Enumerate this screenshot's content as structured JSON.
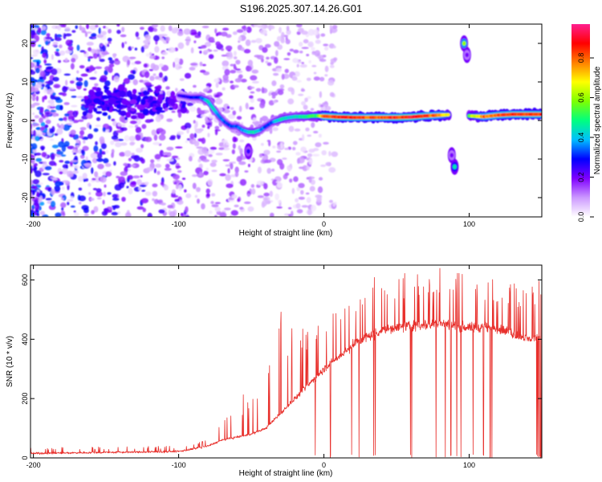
{
  "title": "S196.2025.307.14.26.G01",
  "chart_data": [
    {
      "type": "heatmap",
      "title": "S196.2025.307.14.26.G01",
      "xlabel": "Height of straight line (km)",
      "ylabel": "Frequency (Hz)",
      "xlim": [
        -202,
        150
      ],
      "ylim": [
        -25,
        25
      ],
      "x_ticks": [
        "-200",
        "-100",
        "0",
        "100"
      ],
      "x_tick_values": [
        -200,
        -100,
        0,
        100
      ],
      "y_ticks": [
        "20",
        "10",
        "0",
        "-10",
        "-20"
      ],
      "y_tick_values": [
        20,
        10,
        0,
        -10,
        -20
      ],
      "colorbar": {
        "label": "Normalized spectral amplitude",
        "range": [
          0,
          0.97
        ],
        "ticks": [
          "0.0",
          "0.2",
          "0.4",
          "0.6",
          "0.8"
        ],
        "tick_values": [
          0,
          0.2,
          0.4,
          0.6,
          0.8
        ],
        "colors": [
          "#ffffff",
          "#cc99ff",
          "#7f00ff",
          "#0000ff",
          "#00bfff",
          "#00ff7f",
          "#7fff00",
          "#ffff00",
          "#ff7f00",
          "#ff0000",
          "#ff1f8f"
        ]
      },
      "ridge": {
        "x": [
          -100,
          -92,
          -85,
          -80,
          -76,
          -72,
          -68,
          -64,
          -60,
          -56,
          -52,
          -48,
          -44,
          -40,
          -36,
          -32,
          -28,
          -24,
          -20,
          -16,
          -12,
          -8,
          -4,
          0,
          10,
          20,
          30,
          40,
          50,
          60,
          70,
          80,
          86
        ],
        "freq": [
          6.5,
          6,
          6,
          5,
          3,
          1,
          -0.5,
          -1.5,
          -1.5,
          -2.5,
          -3,
          -3,
          -2.5,
          -1.5,
          -0.5,
          0,
          0.5,
          0.8,
          1,
          1,
          1,
          1.2,
          1.2,
          1.1,
          0.9,
          0.8,
          0.8,
          0.8,
          0.8,
          0.9,
          1.2,
          1.4,
          1.5
        ],
        "amplitude": [
          0.25,
          0.3,
          0.35,
          0.45,
          0.45,
          0.4,
          0.35,
          0.35,
          0.35,
          0.4,
          0.45,
          0.5,
          0.4,
          0.35,
          0.35,
          0.45,
          0.5,
          0.45,
          0.45,
          0.5,
          0.5,
          0.55,
          0.55,
          0.9,
          0.92,
          0.9,
          0.88,
          0.9,
          0.92,
          0.95,
          0.9,
          0.85,
          0.7
        ]
      },
      "ridge2": {
        "x": [
          100,
          110,
          120,
          130,
          140,
          150
        ],
        "freq": [
          1.2,
          1.0,
          1.4,
          1.6,
          1.6,
          1.6
        ],
        "amplitude": [
          0.6,
          0.85,
          0.88,
          0.9,
          0.92,
          0.9
        ]
      },
      "blobs": [
        {
          "x": 96.5,
          "freq": 20,
          "amplitude": 0.6
        },
        {
          "x": 98.5,
          "freq": 17,
          "amplitude": 0.2
        },
        {
          "x": 90,
          "freq": -12,
          "amplitude": 0.45
        },
        {
          "x": 88,
          "freq": -9,
          "amplitude": 0.2
        },
        {
          "x": -52,
          "freq": -8,
          "amplitude": 0.25
        }
      ]
    },
    {
      "type": "line",
      "xlabel": "Height of straight line (km)",
      "ylabel": "SNR (10 * v/v)",
      "xlim": [
        -202,
        150
      ],
      "ylim": [
        0,
        650
      ],
      "x_ticks": [
        "-200",
        "-100",
        "0",
        "100"
      ],
      "x_tick_values": [
        -200,
        -100,
        0,
        100
      ],
      "y_ticks": [
        "0",
        "200",
        "400",
        "600"
      ],
      "y_tick_values": [
        0,
        200,
        400,
        600
      ],
      "color": "#e8302c",
      "envelope": {
        "x": [
          -202,
          -160,
          -120,
          -100,
          -90,
          -80,
          -70,
          -60,
          -50,
          -40,
          -30,
          -20,
          -10,
          0,
          10,
          20,
          30,
          40,
          50,
          60,
          70,
          80,
          90,
          100,
          110,
          120,
          130,
          140,
          150
        ],
        "snr": [
          15,
          18,
          20,
          22,
          30,
          40,
          60,
          70,
          80,
          100,
          150,
          200,
          250,
          300,
          340,
          380,
          410,
          430,
          440,
          445,
          450,
          455,
          445,
          440,
          440,
          435,
          420,
          400,
          410
        ]
      },
      "peak_amplitude": {
        "x": [
          -202,
          -100,
          -80,
          -60,
          -40,
          -30,
          -20,
          0,
          20,
          30,
          40,
          60,
          80,
          100,
          120,
          150
        ],
        "snr": [
          35,
          40,
          60,
          200,
          260,
          500,
          420,
          520,
          590,
          610,
          620,
          630,
          640,
          620,
          600,
          600
        ]
      },
      "dropouts": [
        {
          "x_start": -12,
          "x_end": 116,
          "density": "frequent"
        },
        {
          "x_start": 146,
          "x_end": 150,
          "density": "dense"
        }
      ]
    }
  ]
}
